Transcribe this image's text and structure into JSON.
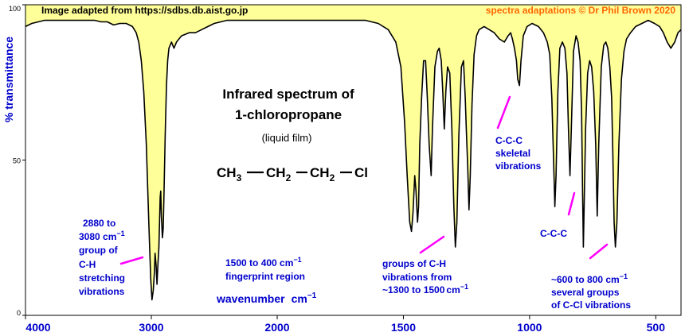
{
  "credits": {
    "source": "Image adapted from https://sdbs.db.aist.go.jp",
    "author": "spectra adaptations © Dr Phil Brown 2020"
  },
  "chart_data": {
    "type": "line",
    "title": "Infrared spectrum of",
    "compound": "1-chloropropane",
    "subtitle": "(liquid film)",
    "xlabel": "wavenumber",
    "xlabel_unit": "cm",
    "xlabel_unit_exp": "−1",
    "ylabel": "% transmittance",
    "xlim": [
      4000,
      400
    ],
    "ylim": [
      0,
      100
    ],
    "x_ticks": [
      4000,
      3000,
      2000,
      1500,
      1000,
      500
    ],
    "x_tick_labels": [
      "4000",
      "3000",
      "2000",
      "1500",
      "1000",
      "500"
    ],
    "y_ticks": [
      0,
      50,
      100
    ],
    "y_tick_labels": [
      "0",
      "50",
      "100"
    ],
    "grid": false,
    "colors": {
      "fill": "#ffff99",
      "line": "#000000",
      "axis": "#0000cc",
      "annotation": "#0000cc",
      "arrow": "#ff00ff",
      "credit": "#ff6600"
    },
    "formula": {
      "ch3": "CH",
      "ch3_sub": "3",
      "ch2a": "CH",
      "ch2a_sub": "2",
      "ch2b": "CH",
      "ch2b_sub": "2",
      "cl": "Cl"
    },
    "annotations": {
      "ch_stretch": {
        "l1": "2880 to",
        "l2": "3080 cm",
        "l2_exp": "−1",
        "l3": "group of",
        "l4": "C-H",
        "l5": "stretching",
        "l6": "vibrations"
      },
      "fingerprint": {
        "l1": "1500 to 400 cm",
        "l1_exp": "−1",
        "l2": "fingerprint region"
      },
      "ch_1300": {
        "l1": "groups of C-H",
        "l2": "vibrations from",
        "l3": "~1300 to 1500",
        "l3_unit": "cm",
        "l3_exp": "−1"
      },
      "ccc_skeletal": {
        "l1": "C-C-C",
        "l2": "skeletal",
        "l3": "vibrations"
      },
      "ccc": {
        "l1": "C-C-C"
      },
      "ccl": {
        "l1": "~600 to 800 cm",
        "l1_exp": "−1",
        "l2": "several groups",
        "l3": "of C-Cl vibrations"
      }
    },
    "series": [
      {
        "points": [
          [
            4000,
            93
          ],
          [
            3950,
            94
          ],
          [
            3850,
            95
          ],
          [
            3750,
            95
          ],
          [
            3650,
            95
          ],
          [
            3550,
            95
          ],
          [
            3450,
            95
          ],
          [
            3400,
            94.5
          ],
          [
            3350,
            94.5
          ],
          [
            3300,
            93.5
          ],
          [
            3250,
            94
          ],
          [
            3200,
            94
          ],
          [
            3150,
            93
          ],
          [
            3120,
            91
          ],
          [
            3100,
            88
          ],
          [
            3080,
            82
          ],
          [
            3060,
            72
          ],
          [
            3040,
            55
          ],
          [
            3020,
            30
          ],
          [
            3005,
            12
          ],
          [
            2995,
            5
          ],
          [
            2985,
            8
          ],
          [
            2975,
            14
          ],
          [
            2970,
            20
          ],
          [
            2962,
            16
          ],
          [
            2955,
            10
          ],
          [
            2948,
            16
          ],
          [
            2940,
            22
          ],
          [
            2935,
            30
          ],
          [
            2930,
            38
          ],
          [
            2925,
            40
          ],
          [
            2920,
            32
          ],
          [
            2912,
            25
          ],
          [
            2906,
            28
          ],
          [
            2900,
            38
          ],
          [
            2890,
            58
          ],
          [
            2880,
            74
          ],
          [
            2870,
            82
          ],
          [
            2860,
            86
          ],
          [
            2840,
            88
          ],
          [
            2820,
            86
          ],
          [
            2800,
            88
          ],
          [
            2760,
            90
          ],
          [
            2700,
            91
          ],
          [
            2650,
            91
          ],
          [
            2600,
            92
          ],
          [
            2550,
            93
          ],
          [
            2500,
            94
          ],
          [
            2400,
            95
          ],
          [
            2300,
            95
          ],
          [
            2200,
            95
          ],
          [
            2100,
            95
          ],
          [
            2000,
            95
          ],
          [
            1900,
            95
          ],
          [
            1800,
            95
          ],
          [
            1700,
            95
          ],
          [
            1650,
            95
          ],
          [
            1600,
            94
          ],
          [
            1560,
            92
          ],
          [
            1530,
            88
          ],
          [
            1510,
            80
          ],
          [
            1495,
            62
          ],
          [
            1485,
            45
          ],
          [
            1475,
            30
          ],
          [
            1468,
            27
          ],
          [
            1462,
            33
          ],
          [
            1455,
            45
          ],
          [
            1450,
            40
          ],
          [
            1444,
            30
          ],
          [
            1440,
            35
          ],
          [
            1435,
            55
          ],
          [
            1428,
            70
          ],
          [
            1420,
            82
          ],
          [
            1412,
            82
          ],
          [
            1405,
            70
          ],
          [
            1398,
            55
          ],
          [
            1390,
            45
          ],
          [
            1385,
            60
          ],
          [
            1375,
            80
          ],
          [
            1365,
            85
          ],
          [
            1358,
            86
          ],
          [
            1350,
            82
          ],
          [
            1344,
            72
          ],
          [
            1338,
            60
          ],
          [
            1332,
            72
          ],
          [
            1325,
            80
          ],
          [
            1316,
            78
          ],
          [
            1308,
            60
          ],
          [
            1300,
            35
          ],
          [
            1294,
            22
          ],
          [
            1288,
            30
          ],
          [
            1280,
            58
          ],
          [
            1270,
            80
          ],
          [
            1262,
            82
          ],
          [
            1255,
            70
          ],
          [
            1250,
            58
          ],
          [
            1245,
            48
          ],
          [
            1240,
            34
          ],
          [
            1235,
            45
          ],
          [
            1228,
            68
          ],
          [
            1220,
            84
          ],
          [
            1210,
            90
          ],
          [
            1200,
            92
          ],
          [
            1180,
            93
          ],
          [
            1160,
            92
          ],
          [
            1140,
            91
          ],
          [
            1120,
            89
          ],
          [
            1100,
            88
          ],
          [
            1085,
            90
          ],
          [
            1075,
            91
          ],
          [
            1068,
            89
          ],
          [
            1060,
            86
          ],
          [
            1052,
            82
          ],
          [
            1047,
            76
          ],
          [
            1040,
            74
          ],
          [
            1034,
            82
          ],
          [
            1025,
            90
          ],
          [
            1010,
            93
          ],
          [
            990,
            94
          ],
          [
            965,
            93
          ],
          [
            945,
            91
          ],
          [
            930,
            88
          ],
          [
            920,
            84
          ],
          [
            912,
            70
          ],
          [
            905,
            50
          ],
          [
            900,
            35
          ],
          [
            895,
            45
          ],
          [
            888,
            72
          ],
          [
            880,
            86
          ],
          [
            870,
            88
          ],
          [
            860,
            86
          ],
          [
            852,
            78
          ],
          [
            846,
            60
          ],
          [
            840,
            45
          ],
          [
            834,
            62
          ],
          [
            826,
            85
          ],
          [
            816,
            90
          ],
          [
            808,
            88
          ],
          [
            800,
            82
          ],
          [
            794,
            65
          ],
          [
            790,
            40
          ],
          [
            787,
            22
          ],
          [
            784,
            34
          ],
          [
            778,
            60
          ],
          [
            770,
            78
          ],
          [
            762,
            82
          ],
          [
            754,
            80
          ],
          [
            746,
            72
          ],
          [
            738,
            55
          ],
          [
            732,
            32
          ],
          [
            726,
            55
          ],
          [
            716,
            80
          ],
          [
            706,
            87
          ],
          [
            698,
            88
          ],
          [
            690,
            86
          ],
          [
            682,
            80
          ],
          [
            675,
            70
          ],
          [
            670,
            52
          ],
          [
            665,
            30
          ],
          [
            660,
            22
          ],
          [
            654,
            30
          ],
          [
            646,
            55
          ],
          [
            636,
            76
          ],
          [
            626,
            85
          ],
          [
            616,
            89
          ],
          [
            600,
            91
          ],
          [
            580,
            93
          ],
          [
            555,
            94
          ],
          [
            530,
            95
          ],
          [
            505,
            94
          ],
          [
            485,
            93
          ],
          [
            470,
            91
          ],
          [
            455,
            88
          ],
          [
            440,
            86
          ],
          [
            425,
            88
          ],
          [
            412,
            91
          ],
          [
            400,
            92
          ]
        ]
      }
    ]
  }
}
